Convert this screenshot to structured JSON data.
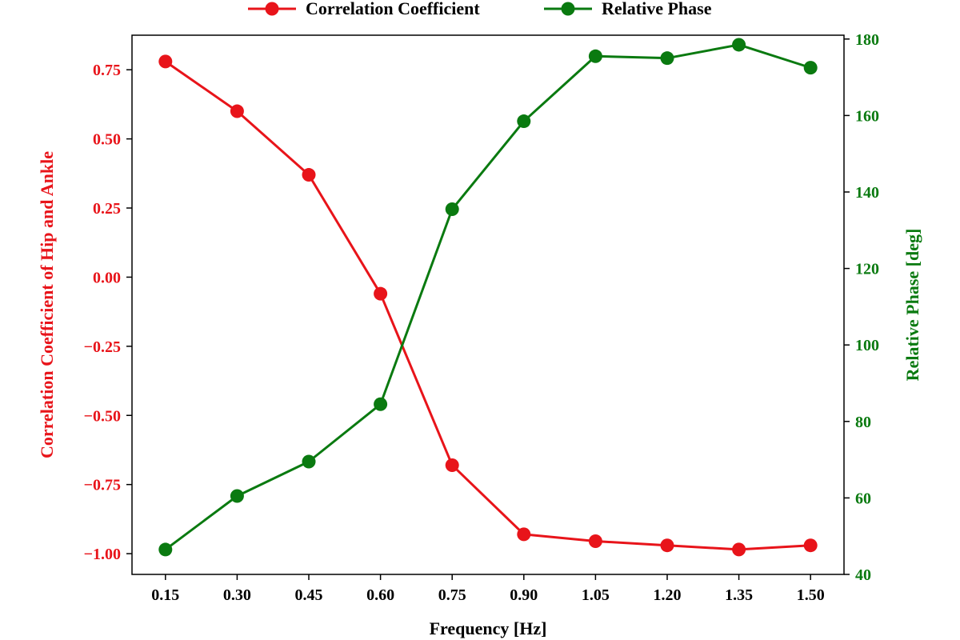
{
  "chart_data": {
    "type": "line",
    "xlabel": "Frequency [Hz]",
    "x": [
      0.15,
      0.3,
      0.45,
      0.6,
      0.75,
      0.9,
      1.05,
      1.2,
      1.35,
      1.5
    ],
    "x_tick_labels": [
      "0.15",
      "0.30",
      "0.45",
      "0.60",
      "0.75",
      "0.90",
      "1.05",
      "1.20",
      "1.35",
      "1.50"
    ],
    "xlim": [
      0.08,
      1.57
    ],
    "grid": false,
    "legend": {
      "placement": "top-center",
      "entries": [
        "Correlation Coefficient",
        "Relative Phase"
      ]
    },
    "y_left": {
      "label": "Correlation Coefficient of Hip and Ankle",
      "color": "#e8141a",
      "ylim": [
        -1.075,
        0.875
      ],
      "ticks": [
        -1.0,
        -0.75,
        -0.5,
        -0.25,
        0.0,
        0.25,
        0.5,
        0.75
      ],
      "tick_labels": [
        "−1.00",
        "−0.75",
        "−0.50",
        "−0.25",
        "0.00",
        "0.25",
        "0.50",
        "0.75"
      ]
    },
    "y_right": {
      "label": "Relative Phase [deg]",
      "color": "#0a7a10",
      "ylim": [
        40,
        181
      ],
      "ticks": [
        40,
        60,
        80,
        100,
        120,
        140,
        160,
        180
      ],
      "tick_labels": [
        "40",
        "60",
        "80",
        "100",
        "120",
        "140",
        "160",
        "180"
      ]
    },
    "series": [
      {
        "name": "Correlation Coefficient",
        "axis": "left",
        "color": "#e8141a",
        "marker": "circle",
        "values": [
          0.78,
          0.6,
          0.37,
          -0.06,
          -0.68,
          -0.93,
          -0.955,
          -0.97,
          -0.985,
          -0.97
        ]
      },
      {
        "name": "Relative Phase",
        "axis": "right",
        "color": "#0a7a10",
        "marker": "circle",
        "values": [
          46.5,
          60.5,
          69.5,
          84.5,
          135.5,
          158.5,
          175.5,
          175,
          178.5,
          172.5
        ]
      }
    ]
  }
}
